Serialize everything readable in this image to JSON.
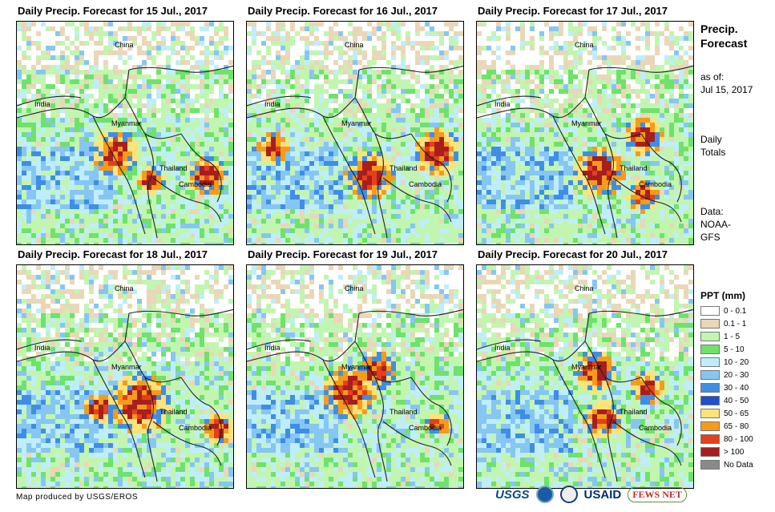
{
  "panels": [
    {
      "title": "Daily Precip. Forecast for 15 Jul., 2017",
      "labels": {
        "china": "China",
        "india": "India",
        "myanmar": "Myanmar",
        "thailand": "Thailand",
        "cambodia": "Cambodia"
      }
    },
    {
      "title": "Daily Precip. Forecast for 16 Jul., 2017",
      "labels": {
        "china": "China",
        "india": "India",
        "myanmar": "Myanmar",
        "thailand": "Thailand",
        "cambodia": "Cambodia"
      }
    },
    {
      "title": "Daily Precip. Forecast for 17 Jul., 2017",
      "labels": {
        "china": "China",
        "india": "India",
        "myanmar": "Myanmar",
        "thailand": "Thailand",
        "cambodia": "Cambodia"
      }
    },
    {
      "title": "Daily Precip. Forecast for 18 Jul., 2017",
      "labels": {
        "china": "China",
        "india": "India",
        "myanmar": "Myanmar",
        "thailand": "Thailand",
        "cambodia": "Cambodia"
      }
    },
    {
      "title": "Daily Precip. Forecast for 19 Jul., 2017",
      "labels": {
        "china": "China",
        "india": "India",
        "myanmar": "Myanmar",
        "thailand": "Thailand",
        "cambodia": "Cambodia"
      }
    },
    {
      "title": "Daily Precip. Forecast for 20 Jul., 2017",
      "labels": {
        "china": "China",
        "india": "India",
        "myanmar": "Myanmar",
        "thailand": "Thailand",
        "cambodia": "Cambodia"
      }
    }
  ],
  "side": {
    "title_line1": "Precip.",
    "title_line2": "Forecast",
    "asof_line1": "as of:",
    "asof_line2": "Jul 15, 2017",
    "totals_line1": "Daily",
    "totals_line2": "Totals",
    "data_line1": "Data:",
    "data_line2": "NOAA-",
    "data_line3": "GFS"
  },
  "legend": {
    "title": "PPT (mm)",
    "items": [
      {
        "label": "0 - 0.1",
        "color": "#ffffff"
      },
      {
        "label": "0.1 - 1",
        "color": "#e9d7b7"
      },
      {
        "label": "1 - 5",
        "color": "#c2f5b0"
      },
      {
        "label": "5 - 10",
        "color": "#6ee26a"
      },
      {
        "label": "10 - 20",
        "color": "#bfeefa"
      },
      {
        "label": "20 - 30",
        "color": "#86c6f2"
      },
      {
        "label": "30 - 40",
        "color": "#3f8ee6"
      },
      {
        "label": "40 - 50",
        "color": "#1b52cc"
      },
      {
        "label": "50 - 65",
        "color": "#fde37a"
      },
      {
        "label": "65 - 80",
        "color": "#f59b1a"
      },
      {
        "label": "80 - 100",
        "color": "#e5401c"
      },
      {
        "label": "> 100",
        "color": "#a81e1e"
      },
      {
        "label": "No Data",
        "color": "#8a8a8a"
      }
    ]
  },
  "credit": "Map produced by USGS/EROS",
  "logos": {
    "usgs": "USGS",
    "usaid": "USAID",
    "fews": "FEWS NET"
  }
}
